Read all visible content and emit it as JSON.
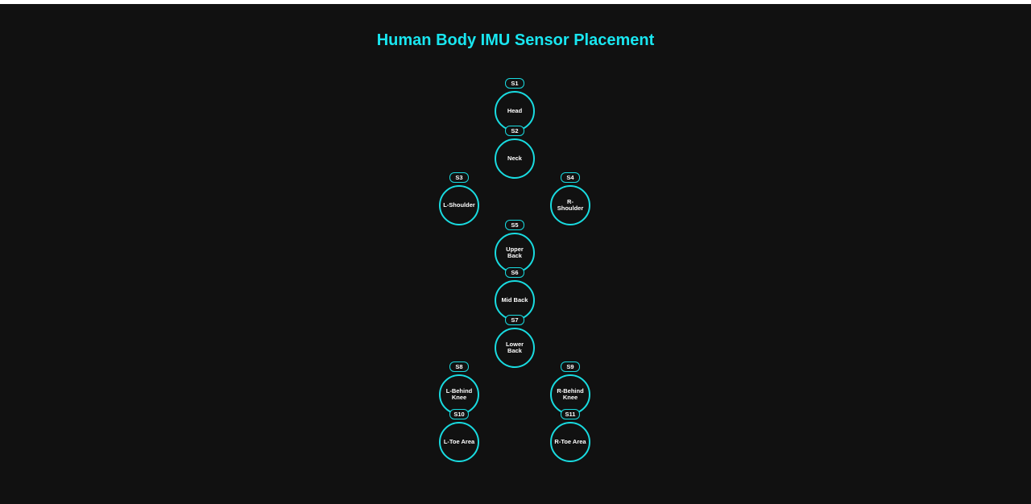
{
  "title": "Human Body IMU Sensor Placement",
  "colors": {
    "background": "#111111",
    "accent": "#19e6f0",
    "label": "#ffffff"
  },
  "sensors": [
    {
      "id": "S1",
      "label": "Head"
    },
    {
      "id": "S2",
      "label": "Neck"
    },
    {
      "id": "S3",
      "label": "L-Shoulder"
    },
    {
      "id": "S4",
      "label": "R-Shoulder"
    },
    {
      "id": "S5",
      "label": "Upper Back"
    },
    {
      "id": "S6",
      "label": "Mid Back"
    },
    {
      "id": "S7",
      "label": "Lower Back"
    },
    {
      "id": "S8",
      "label": "L-Behind Knee"
    },
    {
      "id": "S9",
      "label": "R-Behind Knee"
    },
    {
      "id": "S10",
      "label": "L-Toe Area"
    },
    {
      "id": "S11",
      "label": "R-Toe Area"
    }
  ]
}
